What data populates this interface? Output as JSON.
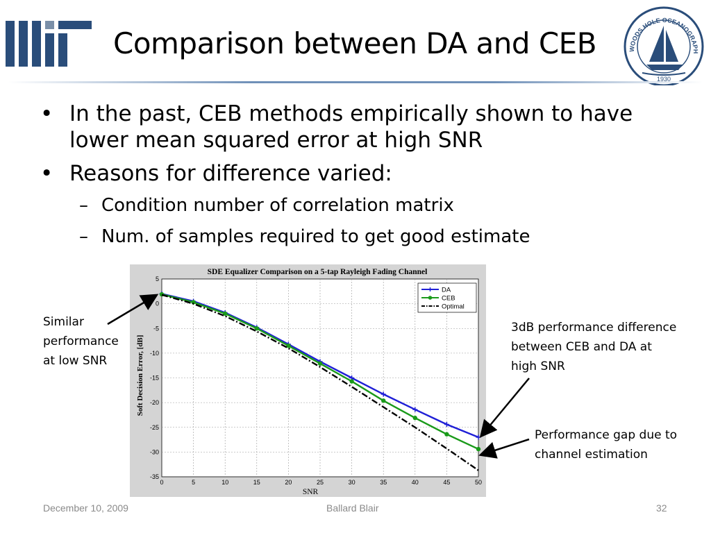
{
  "slide": {
    "title": "Comparison between DA and CEB",
    "bullets": [
      {
        "text": "In the past, CEB methods empirically shown to have lower mean squared error at high SNR"
      },
      {
        "text": "Reasons for difference varied:"
      }
    ],
    "sub_bullets": [
      {
        "text": "Condition number of correlation matrix"
      },
      {
        "text": "Num. of samples required to get good estimate"
      }
    ],
    "annotations": {
      "low_snr": "Similar performance at low SNR",
      "high_snr": "3dB performance difference between CEB and DA at high SNR",
      "gap": "Performance gap due to channel estimation"
    },
    "footer": {
      "date": "December 10, 2009",
      "author": "Ballard Blair",
      "page": "32"
    },
    "logos": {
      "left_icon": "mit-logo",
      "right_icon": "whoi-logo",
      "right_text": "WOODS HOLE OCEANOGRAPHIC INSTITUTION",
      "right_year": "1930"
    }
  },
  "chart_data": {
    "type": "line",
    "title": "SDE Equalizer Comparison on a 5-tap Rayleigh Fading Channel",
    "xlabel": "SNR",
    "ylabel": "Soft Decision Error, [dB]",
    "xlim": [
      0,
      50
    ],
    "ylim": [
      -35,
      5
    ],
    "xticks": [
      0,
      5,
      10,
      15,
      20,
      25,
      30,
      35,
      40,
      45,
      50
    ],
    "yticks": [
      5,
      0,
      -5,
      -10,
      -15,
      -20,
      -25,
      -30,
      -35
    ],
    "grid": true,
    "legend_position": "top-right",
    "x": [
      0,
      5,
      10,
      15,
      20,
      25,
      30,
      35,
      40,
      45,
      50
    ],
    "series": [
      {
        "name": "DA",
        "color": "#1f1fd6",
        "marker": "plus",
        "values": [
          2.0,
          0.5,
          -1.8,
          -4.8,
          -8.2,
          -11.7,
          -15.0,
          -18.3,
          -21.4,
          -24.4,
          -27.0
        ]
      },
      {
        "name": "CEB",
        "color": "#1a9a1a",
        "marker": "dot",
        "values": [
          1.9,
          0.3,
          -2.0,
          -5.0,
          -8.5,
          -12.1,
          -15.7,
          -19.6,
          -23.1,
          -26.4,
          -29.4
        ]
      },
      {
        "name": "Optimal",
        "color": "#000000",
        "marker": "none",
        "dash": "dashdot",
        "values": [
          1.8,
          0.0,
          -2.5,
          -5.6,
          -9.0,
          -12.8,
          -16.8,
          -20.9,
          -25.0,
          -29.3,
          -33.7
        ]
      }
    ]
  }
}
